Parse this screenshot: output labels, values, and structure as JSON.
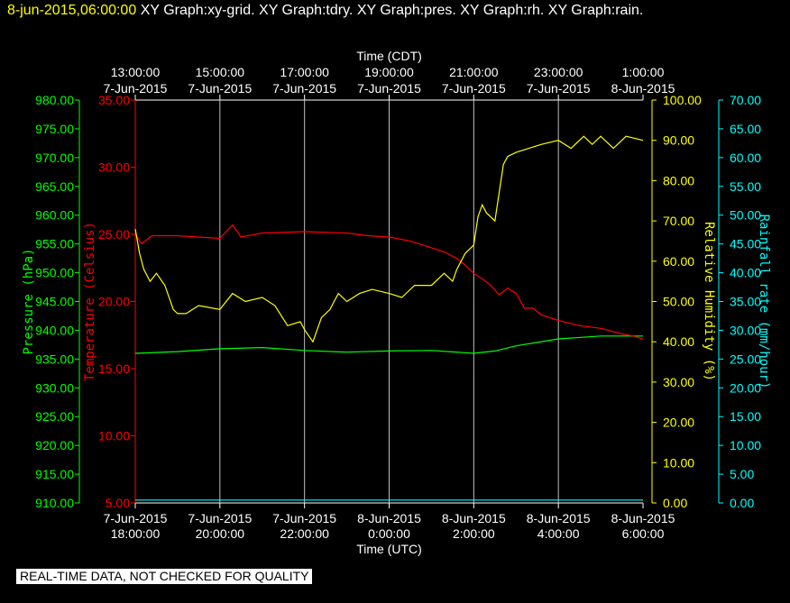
{
  "header": {
    "timestamp": "8-jun-2015,06:00:00",
    "graphs": [
      "XY Graph:xy-grid.",
      "XY Graph:tdry.",
      "XY Graph:pres.",
      "XY Graph:rh.",
      "XY Graph:rain."
    ]
  },
  "footer": {
    "quality_notice": "REAL-TIME DATA, NOT CHECKED FOR QUALITY"
  },
  "chart_data": {
    "type": "line",
    "x_axis_bottom": {
      "label": "Time (UTC)",
      "ticks": [
        {
          "date": "7-Jun-2015",
          "time": "18:00:00"
        },
        {
          "date": "7-Jun-2015",
          "time": "20:00:00"
        },
        {
          "date": "7-Jun-2015",
          "time": "22:00:00"
        },
        {
          "date": "8-Jun-2015",
          "time": "0:00:00"
        },
        {
          "date": "8-Jun-2015",
          "time": "2:00:00"
        },
        {
          "date": "8-Jun-2015",
          "time": "4:00:00"
        },
        {
          "date": "8-Jun-2015",
          "time": "6:00:00"
        }
      ]
    },
    "x_axis_top": {
      "label": "Time (CDT)",
      "ticks": [
        {
          "time": "13:00:00",
          "date": "7-Jun-2015"
        },
        {
          "time": "15:00:00",
          "date": "7-Jun-2015"
        },
        {
          "time": "17:00:00",
          "date": "7-Jun-2015"
        },
        {
          "time": "19:00:00",
          "date": "7-Jun-2015"
        },
        {
          "time": "21:00:00",
          "date": "7-Jun-2015"
        },
        {
          "time": "23:00:00",
          "date": "7-Jun-2015"
        },
        {
          "time": "1:00:00",
          "date": "8-Jun-2015"
        }
      ]
    },
    "x_range_hours_utc": [
      18,
      30
    ],
    "grid": "vertical",
    "y_axes": [
      {
        "id": "pres",
        "label": "Pressure (hPa)",
        "color": "#00ff00",
        "range": [
          910,
          980
        ],
        "ticks": [
          "910.00",
          "915.00",
          "920.00",
          "925.00",
          "930.00",
          "935.00",
          "940.00",
          "945.00",
          "950.00",
          "955.00",
          "960.00",
          "965.00",
          "970.00",
          "975.00",
          "980.00"
        ]
      },
      {
        "id": "tdry",
        "label": "Temperature (Celsius)",
        "color": "#ff0000",
        "range": [
          5,
          35
        ],
        "ticks": [
          "5.00",
          "10.00",
          "15.00",
          "20.00",
          "25.00",
          "30.00",
          "35.00"
        ]
      },
      {
        "id": "rh",
        "label": "Relative Humidity (%)",
        "color": "#ffff00",
        "range": [
          0,
          100
        ],
        "ticks": [
          "0.00",
          "10.00",
          "20.00",
          "30.00",
          "40.00",
          "50.00",
          "60.00",
          "70.00",
          "80.00",
          "90.00",
          "100.00"
        ]
      },
      {
        "id": "rain",
        "label": "Rainfall rate (mm/hour)",
        "color": "#00ffff",
        "range": [
          0,
          70
        ],
        "ticks": [
          "0.00",
          "5.00",
          "10.00",
          "15.00",
          "20.00",
          "25.00",
          "30.00",
          "35.00",
          "40.00",
          "45.00",
          "50.00",
          "55.00",
          "60.00",
          "65.00",
          "70.00"
        ]
      }
    ],
    "series": [
      {
        "axis": "pres",
        "color": "#00ff00",
        "x": [
          18.0,
          19.0,
          20.0,
          21.0,
          22.0,
          23.0,
          24.0,
          25.0,
          26.0,
          26.5,
          27.0,
          28.0,
          29.0,
          30.0
        ],
        "y": [
          936.0,
          936.3,
          936.8,
          937.0,
          936.5,
          936.2,
          936.4,
          936.5,
          936.0,
          936.4,
          937.3,
          938.5,
          939.0,
          939.0
        ]
      },
      {
        "axis": "tdry",
        "color": "#ff0000",
        "x": [
          18.0,
          18.15,
          18.4,
          19.0,
          20.0,
          20.3,
          20.5,
          21.0,
          22.0,
          23.0,
          23.5,
          24.0,
          24.5,
          25.0,
          25.3,
          25.6,
          25.8,
          26.0,
          26.2,
          26.4,
          26.6,
          26.8,
          27.0,
          27.2,
          27.4,
          27.6,
          28.0,
          28.5,
          29.0,
          29.5,
          29.8,
          30.0
        ],
        "y": [
          25.0,
          24.3,
          24.9,
          24.9,
          24.7,
          25.7,
          24.8,
          25.1,
          25.2,
          25.1,
          24.9,
          24.8,
          24.5,
          24.0,
          23.7,
          23.2,
          22.7,
          22.1,
          21.7,
          21.2,
          20.5,
          21.0,
          20.6,
          19.5,
          19.5,
          19.0,
          18.6,
          18.2,
          18.0,
          17.6,
          17.4,
          17.2
        ]
      },
      {
        "axis": "rh",
        "color": "#ffff00",
        "x": [
          18.0,
          18.1,
          18.2,
          18.35,
          18.5,
          18.7,
          18.9,
          19.0,
          19.2,
          19.5,
          20.0,
          20.3,
          20.6,
          21.0,
          21.3,
          21.6,
          21.9,
          22.0,
          22.2,
          22.4,
          22.6,
          22.8,
          23.0,
          23.3,
          23.6,
          24.0,
          24.3,
          24.6,
          25.0,
          25.3,
          25.5,
          25.6,
          25.7,
          25.8,
          26.0,
          26.1,
          26.2,
          26.3,
          26.5,
          26.7,
          26.8,
          27.0,
          27.3,
          27.6,
          28.0,
          28.3,
          28.6,
          28.8,
          29.0,
          29.3,
          29.6,
          30.0
        ],
        "y": [
          68,
          62,
          58,
          55,
          57,
          54,
          48,
          47,
          47,
          49,
          48,
          52,
          50,
          51,
          49,
          44,
          45,
          43,
          40,
          46,
          48,
          52,
          50,
          52,
          53,
          52,
          51,
          54,
          54,
          57,
          55,
          58,
          60,
          62,
          64,
          71,
          74,
          72,
          70,
          84,
          86,
          87,
          88,
          89,
          90,
          88,
          91,
          89,
          91,
          88,
          91,
          90
        ]
      },
      {
        "axis": "rain",
        "color": "#00ffff",
        "x": [
          18.0,
          30.0
        ],
        "y": [
          0.5,
          0.5
        ]
      }
    ]
  }
}
